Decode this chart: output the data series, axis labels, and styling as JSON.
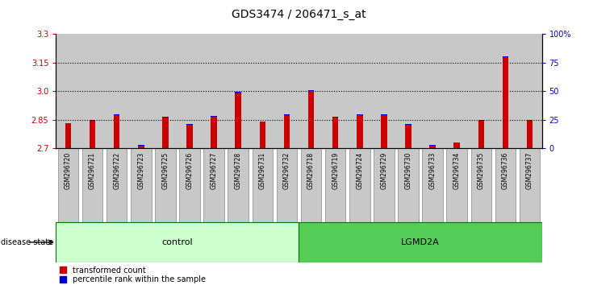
{
  "title": "GDS3474 / 206471_s_at",
  "samples": [
    "GSM296720",
    "GSM296721",
    "GSM296722",
    "GSM296723",
    "GSM296725",
    "GSM296726",
    "GSM296727",
    "GSM296728",
    "GSM296731",
    "GSM296732",
    "GSM296718",
    "GSM296719",
    "GSM296724",
    "GSM296729",
    "GSM296730",
    "GSM296733",
    "GSM296734",
    "GSM296735",
    "GSM296736",
    "GSM296737"
  ],
  "red_values": [
    2.83,
    2.845,
    2.875,
    2.715,
    2.86,
    2.825,
    2.865,
    2.99,
    2.84,
    2.875,
    3.0,
    2.86,
    2.875,
    2.875,
    2.825,
    2.715,
    2.73,
    2.845,
    3.18,
    2.845
  ],
  "blue_values": [
    0.003,
    0.005,
    0.005,
    0.002,
    0.004,
    0.003,
    0.005,
    0.005,
    0.002,
    0.004,
    0.005,
    0.004,
    0.005,
    0.005,
    0.002,
    0.002,
    0.002,
    0.005,
    0.005,
    0.004
  ],
  "y_min": 2.7,
  "y_max": 3.3,
  "y_ticks_left": [
    2.7,
    2.85,
    3.0,
    3.15,
    3.3
  ],
  "y_ticks_right": [
    0,
    25,
    50,
    75,
    100
  ],
  "control_count": 10,
  "lgmd2a_count": 10,
  "control_label": "control",
  "lgmd2a_label": "LGMD2A",
  "disease_state_label": "disease state",
  "legend_red": "transformed count",
  "legend_blue": "percentile rank within the sample",
  "bar_width": 0.25,
  "plot_bg": "#c8c8c8",
  "label_col_bg": "#c8c8c8",
  "control_fill": "#ccffcc",
  "lgmd2a_fill": "#55cc55",
  "red_color": "#cc0000",
  "blue_color": "#0000cc",
  "title_fontsize": 10,
  "tick_fontsize": 7,
  "dotted_lines": [
    2.85,
    3.0,
    3.15
  ]
}
